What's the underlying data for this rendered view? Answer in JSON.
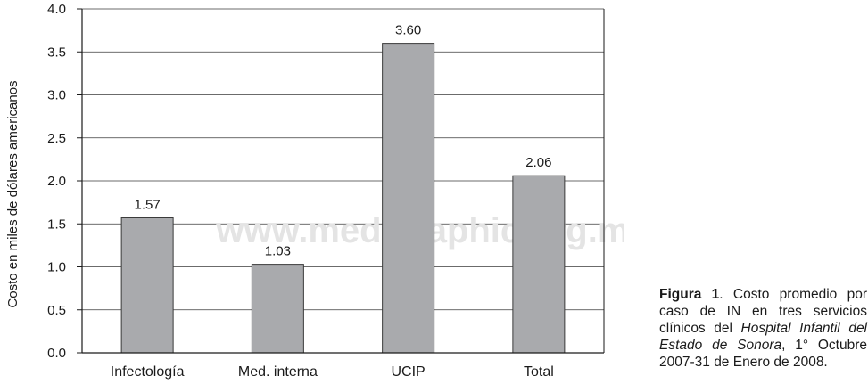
{
  "chart_data": {
    "type": "bar",
    "categories": [
      "Infectología",
      "Med. interna",
      "UCIP",
      "Total"
    ],
    "values": [
      1.57,
      1.03,
      3.6,
      2.06
    ],
    "data_labels": [
      "1.57",
      "1.03",
      "3.60",
      "2.06"
    ],
    "ylabel": "Costo en miles de dólares americanos",
    "ylim": [
      0,
      4.0
    ],
    "yticks": [
      "0.0",
      "0.5",
      "1.0",
      "1.5",
      "2.0",
      "2.5",
      "3.0",
      "3.5",
      "4.0"
    ],
    "grid": true,
    "bar_color": "#a9aaad",
    "bar_edge_color": "#3a3a3a"
  },
  "watermark": "www.medigraphic.org.mx",
  "caption": {
    "lead": "Figura 1",
    "text1": ". Costo promedio por caso de IN en tres servicios clínicos del ",
    "italic": "Hospital Infantil del Estado de Sonora",
    "text2": ", 1° Octubre 2007-31 de Enero de 2008."
  }
}
